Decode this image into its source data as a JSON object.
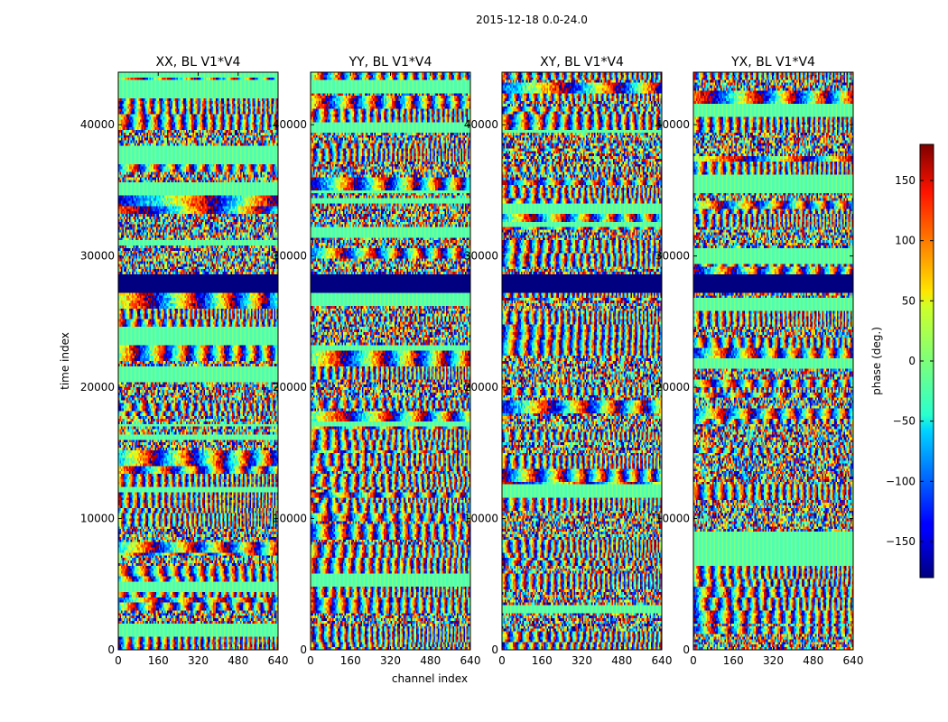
{
  "figure": {
    "suptitle": "2015-12-18 0.0-24.0"
  },
  "chart_data": {
    "type": "heatmap",
    "suptitle": "2015-12-18 0.0-24.0",
    "xlabel": "channel index",
    "ylabel": "time index",
    "xlim": [
      0,
      640
    ],
    "ylim": [
      0,
      44000
    ],
    "xticks": [
      0,
      160,
      320,
      480,
      640
    ],
    "yticks": [
      0,
      10000,
      20000,
      30000,
      40000
    ],
    "panels": [
      {
        "title": "XX, BL V1*V4"
      },
      {
        "title": "YY, BL V1*V4"
      },
      {
        "title": "XY, BL V1*V4"
      },
      {
        "title": "YX, BL V1*V4"
      }
    ],
    "colorbar": {
      "label": "phase (deg.)",
      "range": [
        -180,
        180
      ],
      "ticks": [
        -150,
        -100,
        -50,
        0,
        50,
        100,
        150
      ],
      "colormap": "jet"
    },
    "flagged_band": [
      27300,
      28700
    ]
  }
}
